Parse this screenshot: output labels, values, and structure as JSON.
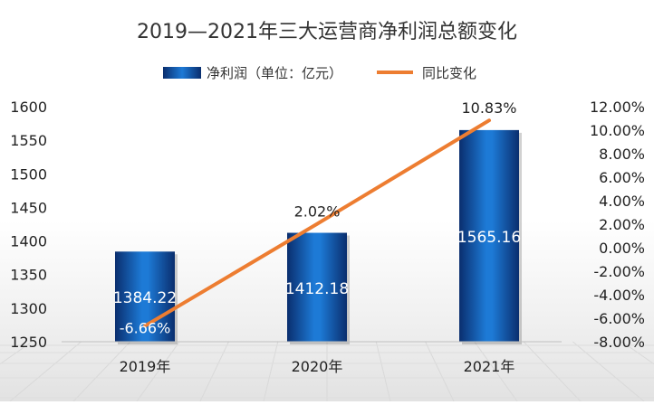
{
  "chart_data": {
    "type": "bar",
    "title": "2019—2021年三大运营商净利润总额变化",
    "categories": [
      "2019年",
      "2020年",
      "2021年"
    ],
    "series": [
      {
        "name": "净利润（单位：亿元）",
        "type": "bar",
        "axis": "left",
        "values": [
          1384.22,
          1412.18,
          1565.16
        ],
        "data_labels": [
          "1384.22",
          "1412.18",
          "1565.16"
        ],
        "color": "#1a6fc8"
      },
      {
        "name": "同比变化",
        "type": "line",
        "axis": "right",
        "values": [
          -6.66,
          2.02,
          10.83
        ],
        "data_labels": [
          "-6.66%",
          "2.02%",
          "10.83%"
        ],
        "color": "#ed7d31"
      }
    ],
    "y_left": {
      "min": 1250,
      "max": 1600,
      "ticks": [
        "1250",
        "1300",
        "1350",
        "1400",
        "1450",
        "1500",
        "1550",
        "1600"
      ]
    },
    "y_right": {
      "min": -8,
      "max": 12,
      "ticks": [
        "-8.00%",
        "-6.00%",
        "-4.00%",
        "-2.00%",
        "0.00%",
        "2.00%",
        "4.00%",
        "6.00%",
        "8.00%",
        "10.00%",
        "12.00%"
      ]
    },
    "legend_position": "top",
    "grid": true
  }
}
